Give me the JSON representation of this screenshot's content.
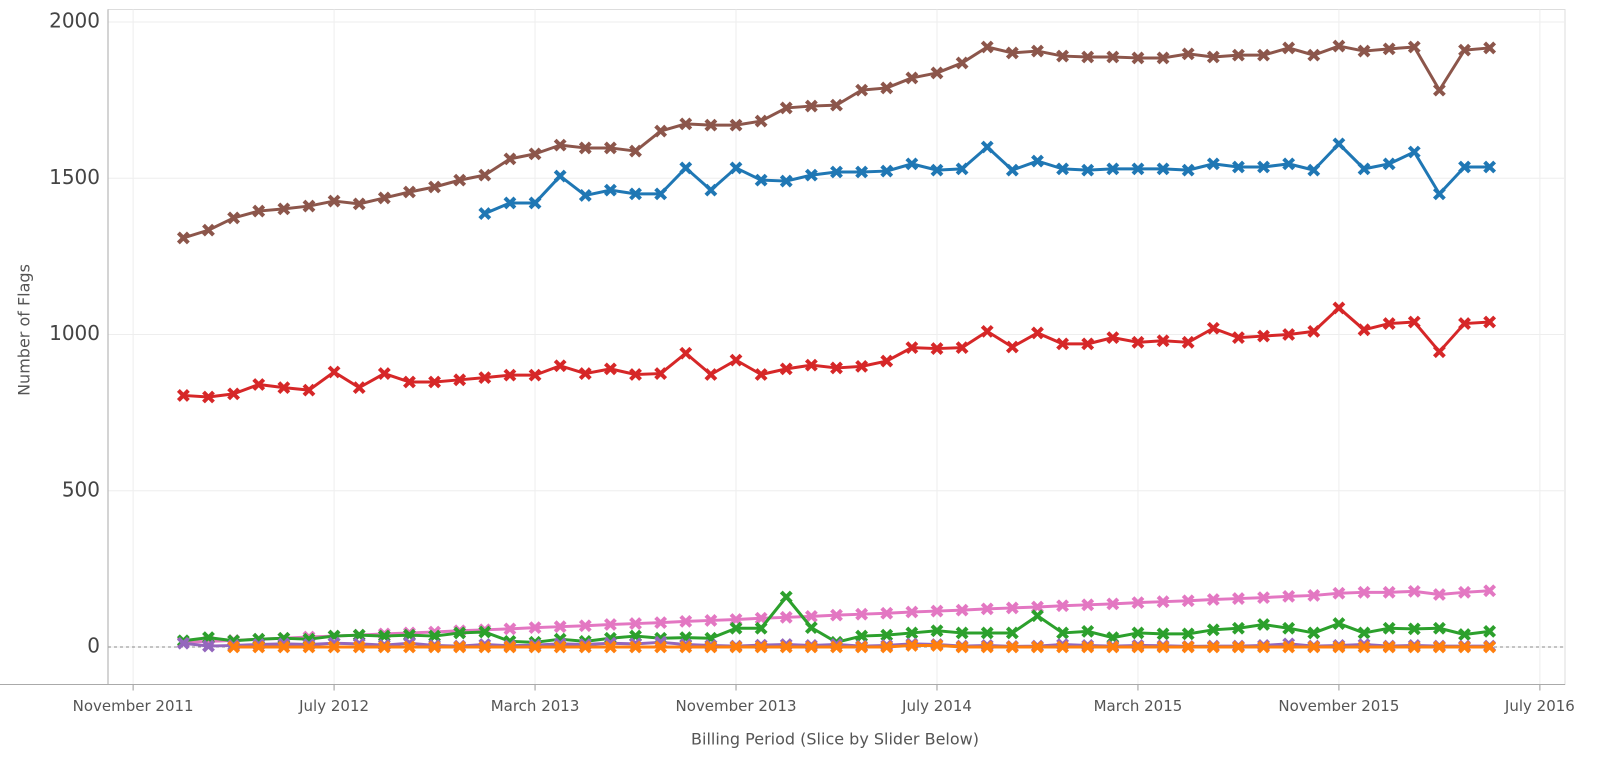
{
  "chart_data": {
    "type": "line",
    "x_label": "Billing Period (Slice by Slider Below)",
    "y_label": "Number of Flags",
    "x": [
      "2012-01",
      "2012-02",
      "2012-03",
      "2012-04",
      "2012-05",
      "2012-06",
      "2012-07",
      "2012-08",
      "2012-09",
      "2012-10",
      "2012-11",
      "2012-12",
      "2013-01",
      "2013-02",
      "2013-03",
      "2013-04",
      "2013-05",
      "2013-06",
      "2013-07",
      "2013-08",
      "2013-09",
      "2013-10",
      "2013-11",
      "2013-12",
      "2014-01",
      "2014-02",
      "2014-03",
      "2014-04",
      "2014-05",
      "2014-06",
      "2014-07",
      "2014-08",
      "2014-09",
      "2014-10",
      "2014-11",
      "2014-12",
      "2015-01",
      "2015-02",
      "2015-03",
      "2015-04",
      "2015-05",
      "2015-06",
      "2015-07",
      "2015-08",
      "2015-09",
      "2015-10",
      "2015-11",
      "2015-12",
      "2016-01",
      "2016-02",
      "2016-03",
      "2016-04",
      "2016-05"
    ],
    "series": [
      {
        "color": "#8c564b",
        "values": [
          1309,
          1334,
          1373,
          1395,
          1402,
          1411,
          1427,
          1418,
          1437,
          1456,
          1472,
          1494,
          1510,
          1562,
          1578,
          1606,
          1597,
          1597,
          1587,
          1651,
          1674,
          1670,
          1670,
          1683,
          1725,
          1731,
          1734,
          1782,
          1789,
          1821,
          1837,
          1869,
          1920,
          1901,
          1907,
          1891,
          1888,
          1888,
          1885,
          1885,
          1898,
          1888,
          1894,
          1894,
          1917,
          1894,
          1923,
          1907,
          1914,
          1920,
          1782,
          1910,
          1917
        ]
      },
      {
        "color": "#1f77b4",
        "values": [
          null,
          null,
          null,
          null,
          null,
          null,
          null,
          null,
          null,
          null,
          null,
          null,
          1387,
          1421,
          1421,
          1507,
          1445,
          1462,
          1450,
          1450,
          1533,
          1462,
          1533,
          1494,
          1491,
          1510,
          1520,
          1520,
          1523,
          1546,
          1526,
          1530,
          1600,
          1526,
          1555,
          1530,
          1526,
          1530,
          1530,
          1530,
          1526,
          1546,
          1536,
          1536,
          1546,
          1526,
          1610,
          1530,
          1546,
          1584,
          1450,
          1536,
          1536
        ]
      },
      {
        "color": "#d62728",
        "values": [
          805,
          800,
          810,
          840,
          830,
          822,
          880,
          830,
          875,
          848,
          848,
          855,
          862,
          870,
          870,
          900,
          875,
          890,
          872,
          875,
          940,
          872,
          918,
          872,
          890,
          902,
          893,
          898,
          915,
          958,
          955,
          958,
          1010,
          960,
          1005,
          970,
          970,
          990,
          975,
          980,
          975,
          1020,
          990,
          995,
          1000,
          1010,
          1085,
          1015,
          1035,
          1040,
          945,
          1035,
          1040
        ]
      },
      {
        "color": "#e377c2",
        "values": [
          15,
          18,
          21,
          25,
          28,
          32,
          35,
          38,
          42,
          45,
          48,
          52,
          55,
          58,
          62,
          65,
          68,
          72,
          75,
          78,
          82,
          85,
          88,
          92,
          95,
          98,
          102,
          105,
          108,
          112,
          115,
          118,
          122,
          125,
          128,
          132,
          135,
          138,
          142,
          145,
          148,
          152,
          155,
          158,
          162,
          165,
          172,
          175,
          175,
          178,
          168,
          175,
          180
        ]
      },
      {
        "color": "#2ca02c",
        "values": [
          20,
          30,
          20,
          25,
          28,
          25,
          35,
          38,
          35,
          38,
          35,
          45,
          48,
          18,
          15,
          25,
          18,
          28,
          35,
          28,
          30,
          28,
          60,
          60,
          160,
          62,
          15,
          35,
          38,
          45,
          52,
          45,
          45,
          45,
          100,
          45,
          50,
          30,
          45,
          42,
          42,
          55,
          60,
          72,
          60,
          45,
          75,
          45,
          60,
          58,
          60,
          40,
          50
        ]
      },
      {
        "color": "#9467bd",
        "values": [
          12,
          3,
          5,
          8,
          10,
          8,
          12,
          10,
          6,
          12,
          5,
          3,
          8,
          4,
          6,
          10,
          8,
          12,
          10,
          15,
          8,
          5,
          3,
          6,
          8,
          5,
          8,
          3,
          5,
          10,
          8,
          3,
          5,
          2,
          3,
          8,
          5,
          3,
          5,
          4,
          2,
          3,
          3,
          5,
          10,
          3,
          5,
          8,
          3,
          5,
          3,
          3,
          3
        ]
      },
      {
        "color": "#ff7f0e",
        "values": [
          null,
          null,
          0,
          0,
          0,
          0,
          0,
          0,
          0,
          0,
          0,
          0,
          0,
          0,
          0,
          0,
          0,
          0,
          0,
          0,
          0,
          0,
          0,
          0,
          0,
          0,
          0,
          0,
          0,
          5,
          5,
          0,
          0,
          0,
          0,
          0,
          0,
          0,
          0,
          0,
          0,
          0,
          0,
          0,
          0,
          0,
          0,
          0,
          0,
          0,
          0,
          0,
          0
        ]
      }
    ],
    "xlim": [
      "2011-10",
      "2016-08"
    ],
    "xticks": [
      {
        "value": "2011-11",
        "label": "November 2011"
      },
      {
        "value": "2012-07",
        "label": "July 2012"
      },
      {
        "value": "2013-03",
        "label": "March 2013"
      },
      {
        "value": "2013-11",
        "label": "November 2013"
      },
      {
        "value": "2014-07",
        "label": "July 2014"
      },
      {
        "value": "2015-03",
        "label": "March 2015"
      },
      {
        "value": "2015-11",
        "label": "November 2015"
      },
      {
        "value": "2016-07",
        "label": "July 2016"
      }
    ],
    "ylim": [
      -120,
      2040
    ],
    "yticks": [
      0,
      500,
      1000,
      1500,
      2000
    ],
    "grid": true
  }
}
